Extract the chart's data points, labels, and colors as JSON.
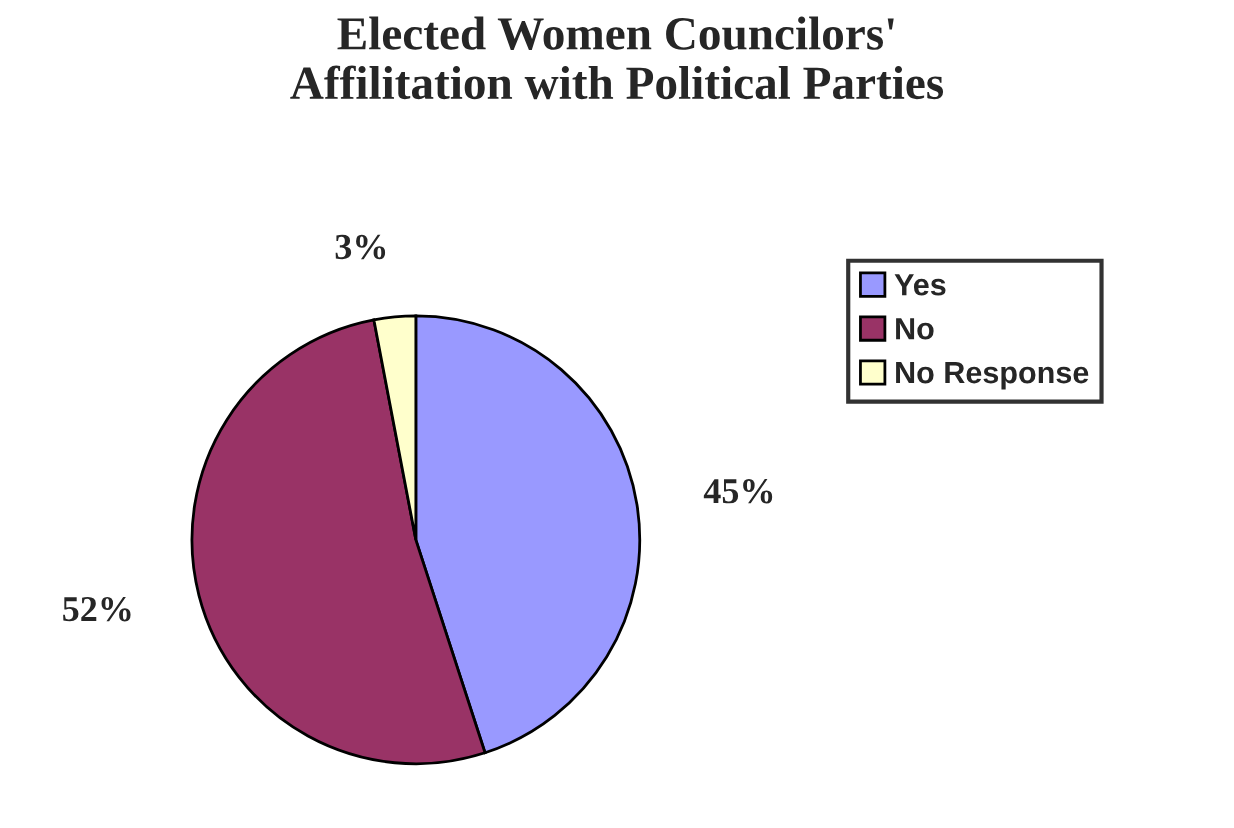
{
  "chart_data": {
    "type": "pie",
    "title": "Elected Women Councilors'\nAffilitation with Political Parties",
    "categories": [
      "Yes",
      "No",
      "No Response"
    ],
    "values": [
      45,
      52,
      3
    ],
    "colors": [
      "#9999ff",
      "#993366",
      "#ffffcc"
    ],
    "value_labels": [
      "45%",
      "52%",
      "3%"
    ],
    "legend": "right"
  }
}
